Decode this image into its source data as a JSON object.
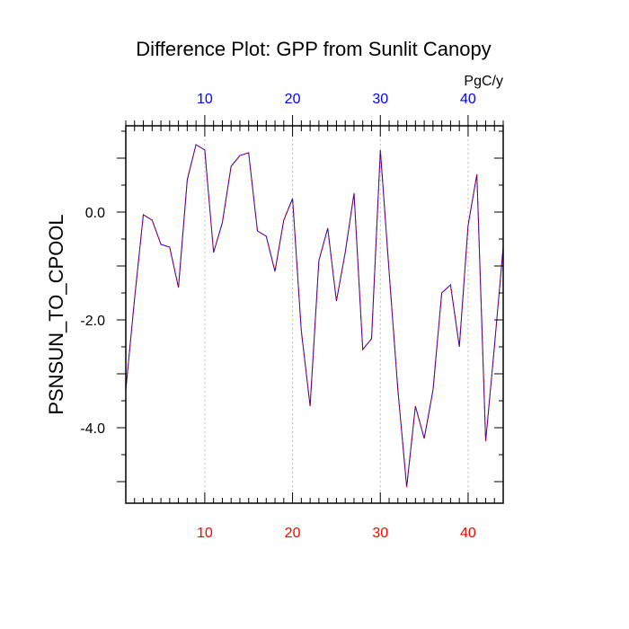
{
  "chart_data": {
    "type": "line",
    "title": "Difference Plot: GPP from Sunlit Canopy",
    "ylabel": "PSNSUN_TO_CPOOL",
    "unit": "PgC/y",
    "xlim": [
      1,
      44
    ],
    "ylim": [
      -5.4,
      1.6
    ],
    "grid": "vertical dashed at major x ticks",
    "x_ticks": [
      10,
      20,
      30,
      40
    ],
    "x_ticks_top": [
      10,
      20,
      30,
      40
    ],
    "y_ticks": [
      0.0,
      -2.0,
      -4.0
    ],
    "y_tick_labels": [
      "0.0",
      "-2.0",
      "-4.0"
    ],
    "colors": {
      "bottom_ticks": "#ff0000",
      "top_ticks": "#0000ff",
      "line_a": "#0000ff",
      "line_b": "#cc0000",
      "grid": "#b0b0b0"
    },
    "series": [
      {
        "x": [
          1,
          2,
          3,
          4,
          5,
          6,
          7,
          8,
          9,
          10,
          11,
          12,
          13,
          14,
          15,
          16,
          17,
          18,
          19,
          20,
          21,
          22,
          23,
          24,
          25,
          26,
          27,
          28,
          29,
          30,
          31,
          32,
          33,
          34,
          35,
          36,
          37,
          38,
          39,
          40,
          41,
          42,
          43,
          44
        ],
        "values": [
          -3.3,
          -1.6,
          -0.05,
          -0.15,
          -0.6,
          -0.65,
          -1.4,
          0.6,
          1.25,
          1.15,
          -0.75,
          -0.2,
          0.85,
          1.05,
          1.1,
          -0.35,
          -0.45,
          -1.1,
          -0.15,
          0.25,
          -2.2,
          -3.6,
          -0.9,
          -0.3,
          -1.65,
          -0.75,
          0.35,
          -2.55,
          -2.35,
          1.15,
          -1.1,
          -3.3,
          -5.1,
          -3.6,
          -4.2,
          -3.3,
          -1.5,
          -1.35,
          -2.5,
          -0.25,
          0.7,
          -4.25,
          -2.5,
          -0.65
        ]
      }
    ]
  }
}
